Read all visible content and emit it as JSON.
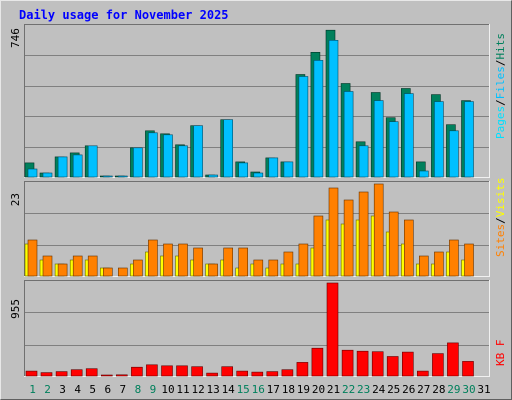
{
  "colors": {
    "background": "#c0c0c0",
    "title": "#0000ff",
    "hits": "#00805c",
    "files": "#00c0ff",
    "pages": "#00e0ff",
    "visits": "#ffff00",
    "sites": "#ff8000",
    "kbytes": "#ff0000",
    "weekend_day": "#00805c",
    "weekday": "#000000",
    "slash": "#000000"
  },
  "chart_data": {
    "type": "bar",
    "title": "Daily usage for November 2025",
    "categories": [
      "1",
      "2",
      "3",
      "4",
      "5",
      "6",
      "7",
      "8",
      "9",
      "10",
      "11",
      "12",
      "13",
      "14",
      "15",
      "16",
      "17",
      "18",
      "19",
      "20",
      "21",
      "22",
      "23",
      "24",
      "25",
      "26",
      "27",
      "28",
      "29",
      "30",
      "31"
    ],
    "weekend_days": [
      "1",
      "2",
      "8",
      "9",
      "15",
      "16",
      "22",
      "23",
      "29",
      "30"
    ],
    "panels": [
      {
        "id": "hits-files-pages",
        "max_label": "746",
        "ylim": [
          0,
          746
        ],
        "legend": [
          {
            "name": "Pages",
            "color_key": "pages"
          },
          {
            "name": "Files",
            "color_key": "files"
          },
          {
            "name": "Hits",
            "color_key": "hits"
          }
        ],
        "series": [
          {
            "name": "Hits",
            "color_key": "hits",
            "values": [
              70,
              20,
              100,
              120,
              155,
              5,
              5,
              145,
              230,
              215,
              160,
              255,
              10,
              285,
              75,
              25,
              95,
              75,
              510,
              620,
              730,
              465,
              175,
              420,
              295,
              440,
              75,
              410,
              260,
              380,
              0
            ]
          },
          {
            "name": "Files",
            "color_key": "files",
            "values": [
              40,
              20,
              100,
              110,
              155,
              5,
              5,
              145,
              220,
              210,
              155,
              255,
              10,
              285,
              70,
              20,
              95,
              75,
              500,
              580,
              680,
              425,
              155,
              380,
              275,
              415,
              30,
              375,
              230,
              375,
              0
            ]
          }
        ]
      },
      {
        "id": "visits-sites",
        "max_label": "23",
        "ylim": [
          0,
          23
        ],
        "legend": [
          {
            "name": "Sites",
            "color_key": "sites"
          },
          {
            "name": "Visits",
            "color_key": "visits"
          }
        ],
        "series": [
          {
            "name": "Visits",
            "color_key": "visits",
            "values": [
              8,
              4,
              3,
              4,
              4,
              2,
              0,
              3,
              6,
              5,
              5,
              4,
              3,
              4,
              2,
              3,
              2,
              3,
              3,
              7,
              14,
              13,
              14,
              15,
              11,
              8,
              3,
              3,
              6,
              4,
              0
            ]
          },
          {
            "name": "Sites",
            "color_key": "sites",
            "values": [
              9,
              5,
              3,
              5,
              5,
              2,
              2,
              4,
              9,
              8,
              8,
              7,
              3,
              7,
              7,
              4,
              4,
              6,
              8,
              15,
              22,
              19,
              21,
              23,
              16,
              14,
              5,
              6,
              9,
              8,
              0
            ]
          }
        ]
      },
      {
        "id": "kbytes",
        "max_label": "955",
        "ylim": [
          0,
          955
        ],
        "legend": [
          {
            "name": "KB F",
            "color_key": "kbytes"
          }
        ],
        "series": [
          {
            "name": "KB F",
            "color_key": "kbytes",
            "values": [
              50,
              35,
              45,
              65,
              75,
              10,
              12,
              90,
              115,
              105,
              105,
              95,
              30,
              95,
              50,
              40,
              45,
              65,
              140,
              285,
              955,
              265,
              255,
              250,
              200,
              245,
              50,
              230,
              340,
              150,
              0
            ]
          }
        ]
      }
    ]
  }
}
